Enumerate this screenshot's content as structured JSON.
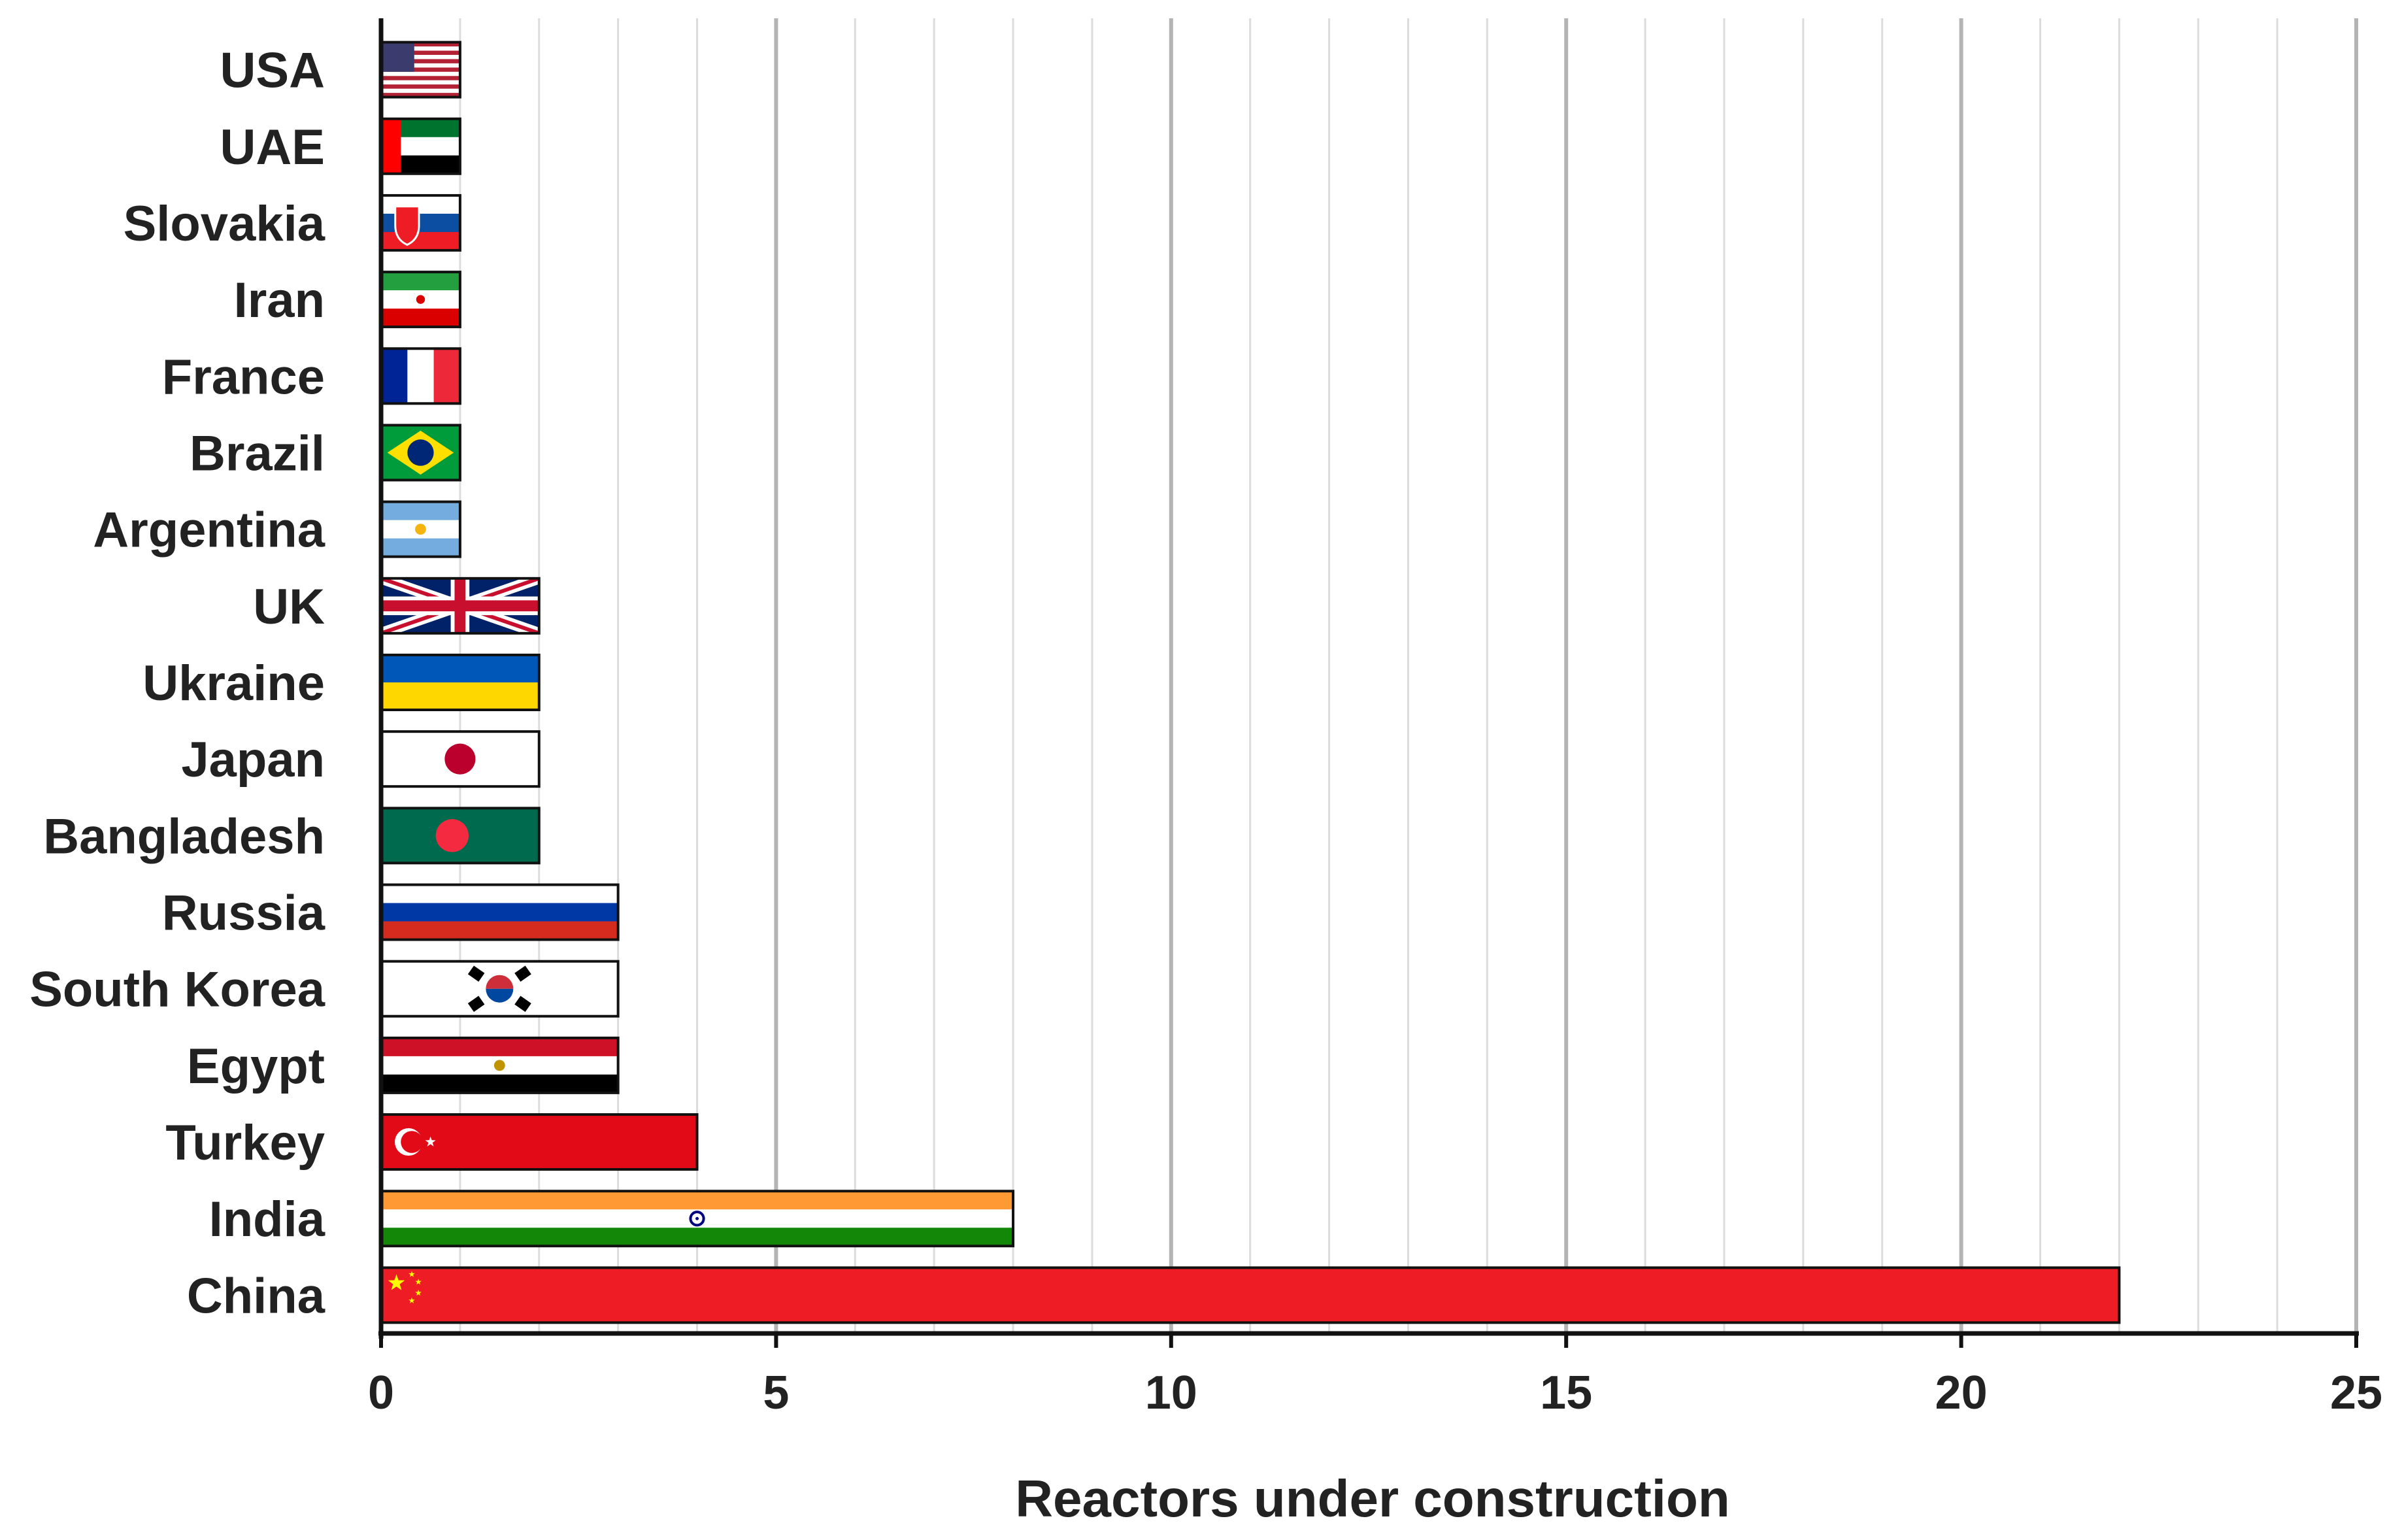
{
  "chart_data": {
    "type": "bar",
    "orientation": "horizontal",
    "title": "",
    "xlabel": "Reactors under construction",
    "ylabel": "",
    "xlim": [
      0,
      25
    ],
    "xticks": [
      0,
      5,
      10,
      15,
      20,
      25
    ],
    "minor_grid_step": 1,
    "grid": true,
    "legend": "none",
    "bar_fill": "national flags",
    "categories": [
      "USA",
      "UAE",
      "Slovakia",
      "Iran",
      "France",
      "Brazil",
      "Argentina",
      "UK",
      "Ukraine",
      "Japan",
      "Bangladesh",
      "Russia",
      "South Korea",
      "Egypt",
      "Turkey",
      "India",
      "China"
    ],
    "values": [
      1,
      1,
      1,
      1,
      1,
      1,
      1,
      2,
      2,
      2,
      2,
      3,
      3,
      3,
      4,
      8,
      22
    ],
    "flags": [
      "usa-flag",
      "uae-flag",
      "slovakia-flag",
      "iran-flag",
      "france-flag",
      "brazil-flag",
      "argentina-flag",
      "uk-flag",
      "ukraine-flag",
      "japan-flag",
      "bangladesh-flag",
      "russia-flag",
      "south-korea-flag",
      "egypt-flag",
      "turkey-flag",
      "india-flag",
      "china-flag"
    ]
  },
  "colors": {
    "axis": "#111111",
    "major_grid": "#b4b4b4",
    "minor_grid": "#dcdcdc",
    "text": "#222222"
  }
}
